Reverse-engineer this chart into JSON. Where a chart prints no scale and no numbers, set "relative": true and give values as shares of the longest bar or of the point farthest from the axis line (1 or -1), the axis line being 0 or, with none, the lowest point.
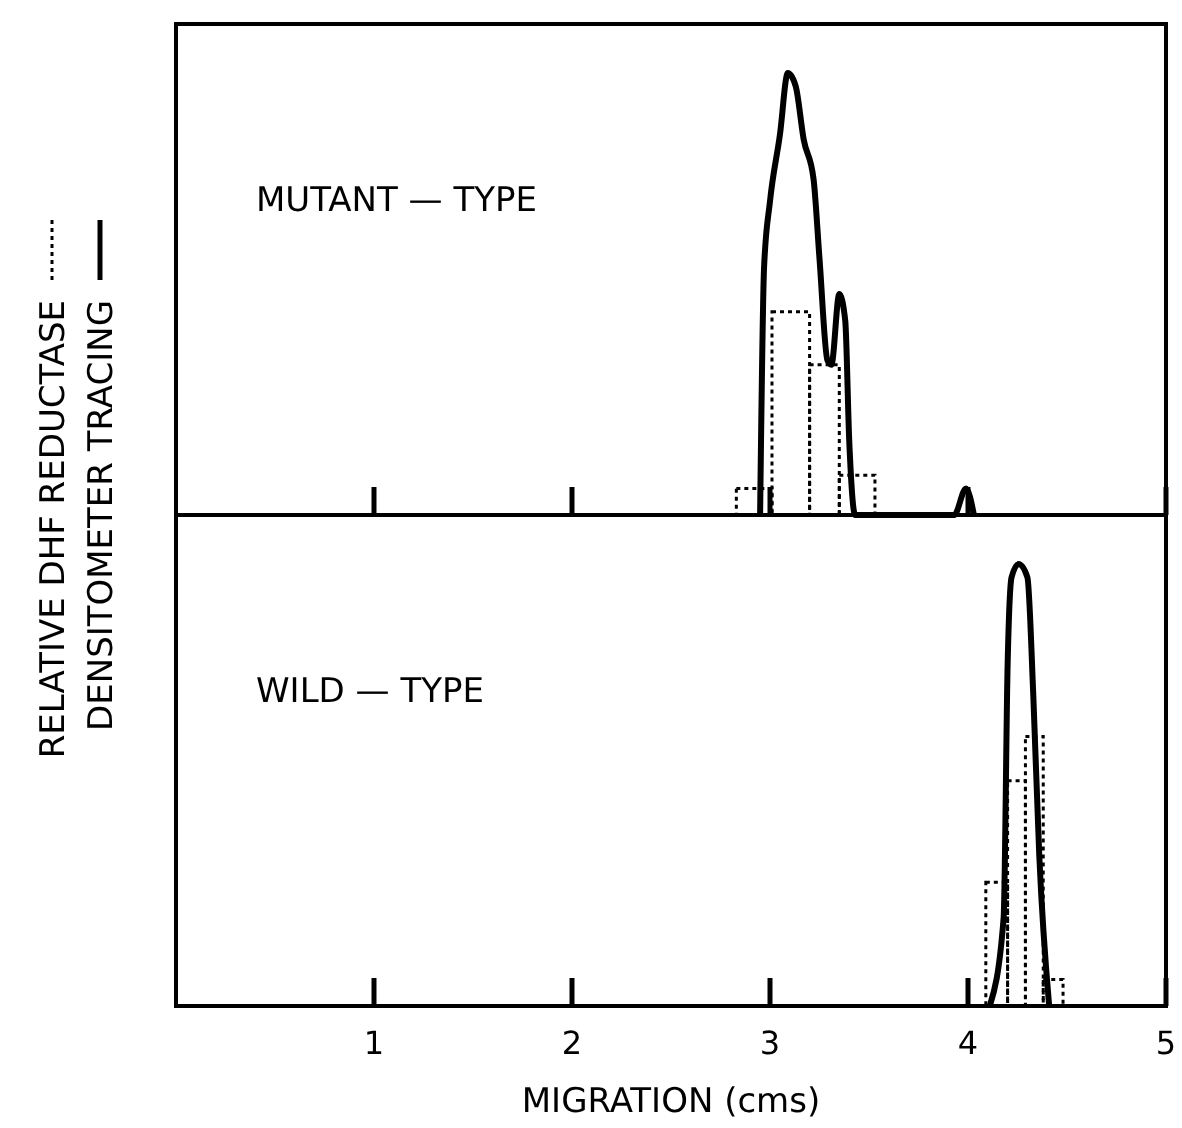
{
  "chart_data": [
    {
      "type": "line",
      "relative": true,
      "xlim": [
        0,
        5
      ],
      "xticks": [
        1,
        2,
        3,
        4,
        5
      ],
      "tick_labels": false,
      "legend": "left",
      "annotations": [
        "MUTANT — TYPE"
      ],
      "series": [
        {
          "name": "RELATIVE DHF REDUCTASE",
          "type": "histogram",
          "color": "#000000",
          "line_style": "dotted",
          "bins": [
            2.83,
            3.01,
            3.2,
            3.35,
            3.53
          ],
          "values": [
            0.06,
            0.46,
            0.34,
            0.09
          ]
        },
        {
          "name": "DENSITOMETER TRACING",
          "color": "#000000",
          "line_style": "solid",
          "x": [
            2.95,
            2.97,
            3.0,
            3.05,
            3.09,
            3.13,
            3.17,
            3.22,
            3.25,
            3.29,
            3.31,
            3.35,
            3.38,
            3.4,
            3.43,
            3.93,
            3.99,
            4.03
          ],
          "values": [
            0,
            0.56,
            0.71,
            0.86,
            1.0,
            0.97,
            0.85,
            0.76,
            0.58,
            0.35,
            0.34,
            0.5,
            0.44,
            0.17,
            0,
            0,
            0.06,
            0
          ]
        }
      ]
    },
    {
      "type": "line",
      "relative": true,
      "xlim": [
        0,
        5
      ],
      "xticks": [
        1,
        2,
        3,
        4,
        5
      ],
      "tick_labels": "x",
      "xlabel": "MIGRATION (cms)",
      "annotations": [
        "WILD — TYPE"
      ],
      "series": [
        {
          "type": "histogram",
          "color": "#000000",
          "line_style": "dotted",
          "bins": [
            4.09,
            4.2,
            4.29,
            4.38,
            4.48
          ],
          "values": [
            0.28,
            0.51,
            0.61,
            0.06
          ]
        },
        {
          "color": "#000000",
          "line_style": "solid",
          "x": [
            4.11,
            4.18,
            4.2,
            4.22,
            4.255,
            4.3,
            4.33,
            4.36,
            4.41
          ],
          "values": [
            0,
            0.2,
            0.77,
            0.97,
            1.0,
            0.97,
            0.7,
            0.34,
            0
          ]
        }
      ]
    }
  ]
}
